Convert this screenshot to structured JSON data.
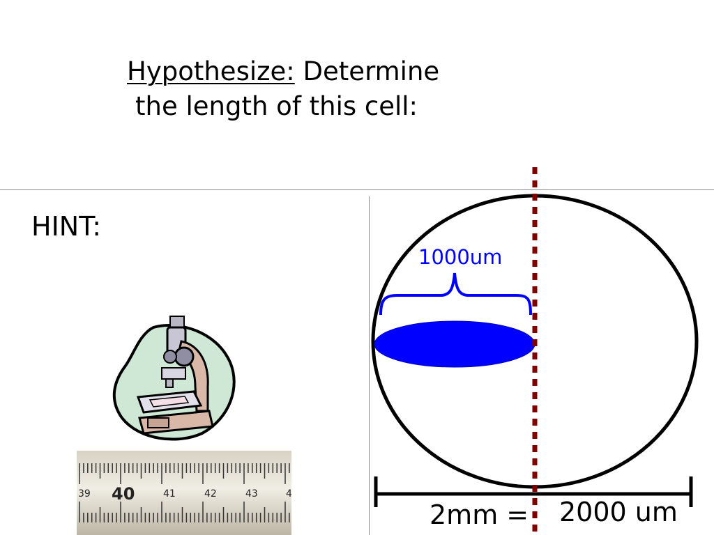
{
  "heading": {
    "underlined": "Hypothesize:",
    "rest": "Determine",
    "line2": "the length of this cell:"
  },
  "hint_label": "HINT:",
  "diagram": {
    "cell_label": "1000um",
    "scale_left": "2mm =",
    "scale_right": "2000 um",
    "colors": {
      "cell": "#0000ff",
      "bracket": "#0000ff",
      "midline": "#800000",
      "outline": "#000000"
    }
  },
  "ruler": {
    "tick_labels": [
      "39",
      "40",
      "41",
      "42",
      "43",
      "4"
    ]
  },
  "icons": {
    "microscope": "microscope-icon",
    "ruler": "ruler-photo"
  }
}
